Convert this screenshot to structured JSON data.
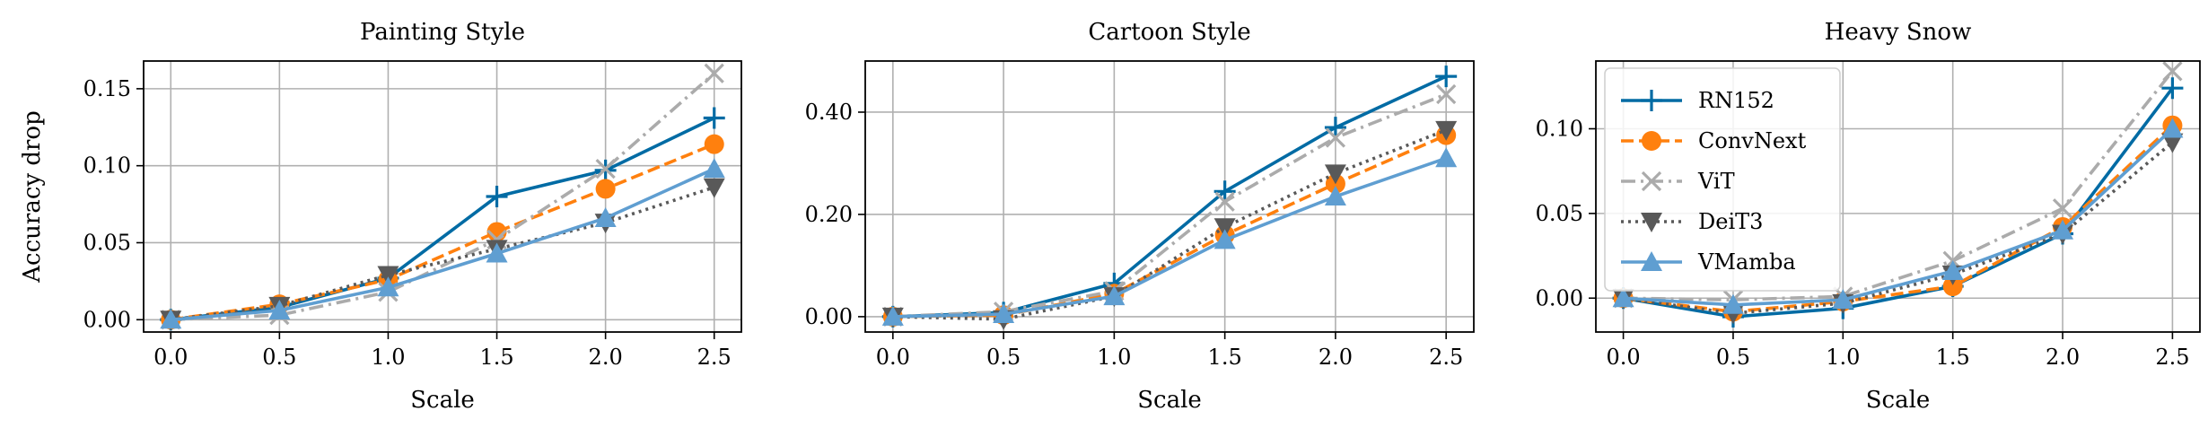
{
  "chart_data": [
    {
      "type": "line",
      "title": "Painting Style",
      "xlabel": "Scale",
      "ylabel": "Accuracy drop",
      "x": [
        0.0,
        0.5,
        1.0,
        1.5,
        2.0,
        2.5
      ],
      "x_ticks": [
        "0.0",
        "0.5",
        "1.0",
        "1.5",
        "2.0",
        "2.5"
      ],
      "xlim": [
        -0.125,
        2.625
      ],
      "ylim": [
        -0.008,
        0.168
      ],
      "y_ticks": [
        0.0,
        0.05,
        0.1,
        0.15
      ],
      "y_tick_labels": [
        "0.00",
        "0.05",
        "0.10",
        "0.15"
      ],
      "grid": true,
      "series": [
        {
          "name": "RN152",
          "values": [
            0.0,
            0.008,
            0.027,
            0.08,
            0.097,
            0.131
          ]
        },
        {
          "name": "ConvNext",
          "values": [
            0.0,
            0.01,
            0.026,
            0.057,
            0.085,
            0.114
          ]
        },
        {
          "name": "ViT",
          "values": [
            0.0,
            0.003,
            0.018,
            0.052,
            0.098,
            0.16
          ]
        },
        {
          "name": "DeiT3",
          "values": [
            0.0,
            0.009,
            0.029,
            0.046,
            0.063,
            0.086
          ]
        },
        {
          "name": "VMamba",
          "values": [
            0.0,
            0.006,
            0.021,
            0.043,
            0.066,
            0.098
          ]
        }
      ]
    },
    {
      "type": "line",
      "title": "Cartoon Style",
      "xlabel": "Scale",
      "ylabel": "",
      "x": [
        0.0,
        0.5,
        1.0,
        1.5,
        2.0,
        2.5
      ],
      "x_ticks": [
        "0.0",
        "0.5",
        "1.0",
        "1.5",
        "2.0",
        "2.5"
      ],
      "xlim": [
        -0.125,
        2.625
      ],
      "ylim": [
        -0.03,
        0.5
      ],
      "y_ticks": [
        0.0,
        0.2,
        0.4
      ],
      "y_tick_labels": [
        "0.00",
        "0.20",
        "0.40"
      ],
      "grid": true,
      "series": [
        {
          "name": "RN152",
          "values": [
            0.0,
            0.008,
            0.065,
            0.245,
            0.37,
            0.47
          ]
        },
        {
          "name": "ConvNext",
          "values": [
            0.0,
            0.003,
            0.045,
            0.16,
            0.26,
            0.355
          ]
        },
        {
          "name": "ViT",
          "values": [
            0.0,
            0.01,
            0.05,
            0.225,
            0.35,
            0.435
          ]
        },
        {
          "name": "DeiT3",
          "values": [
            0.0,
            -0.005,
            0.04,
            0.175,
            0.28,
            0.365
          ]
        },
        {
          "name": "VMamba",
          "values": [
            0.0,
            0.005,
            0.04,
            0.15,
            0.235,
            0.31
          ]
        }
      ]
    },
    {
      "type": "line",
      "title": "Heavy Snow",
      "xlabel": "Scale",
      "ylabel": "",
      "x": [
        0.0,
        0.5,
        1.0,
        1.5,
        2.0,
        2.5
      ],
      "x_ticks": [
        "0.0",
        "0.5",
        "1.0",
        "1.5",
        "2.0",
        "2.5"
      ],
      "xlim": [
        -0.125,
        2.625
      ],
      "ylim": [
        -0.02,
        0.14
      ],
      "y_ticks": [
        0.0,
        0.05,
        0.1
      ],
      "y_tick_labels": [
        "0.00",
        "0.05",
        "0.10"
      ],
      "grid": true,
      "legend": "upper-left",
      "series": [
        {
          "name": "RN152",
          "values": [
            0.0,
            -0.011,
            -0.006,
            0.007,
            0.038,
            0.124
          ]
        },
        {
          "name": "ConvNext",
          "values": [
            0.0,
            -0.008,
            -0.002,
            0.007,
            0.042,
            0.102
          ]
        },
        {
          "name": "ViT",
          "values": [
            0.0,
            -0.001,
            0.001,
            0.022,
            0.053,
            0.134
          ]
        },
        {
          "name": "DeiT3",
          "values": [
            0.0,
            -0.009,
            -0.003,
            0.014,
            0.038,
            0.092
          ]
        },
        {
          "name": "VMamba",
          "values": [
            0.0,
            -0.004,
            -0.001,
            0.016,
            0.04,
            0.1
          ]
        }
      ]
    }
  ],
  "styles": {
    "RN152": {
      "color": "#006ba4",
      "dash": "",
      "marker": "plus"
    },
    "ConvNext": {
      "color": "#ff800e",
      "dash": "14,6",
      "marker": "circle"
    },
    "ViT": {
      "color": "#ababab",
      "dash": "16,6,3,6",
      "marker": "x"
    },
    "DeiT3": {
      "color": "#595959",
      "dash": "3,5",
      "marker": "triangle-down"
    },
    "VMamba": {
      "color": "#5f9ed1",
      "dash": "",
      "marker": "triangle-up"
    }
  }
}
